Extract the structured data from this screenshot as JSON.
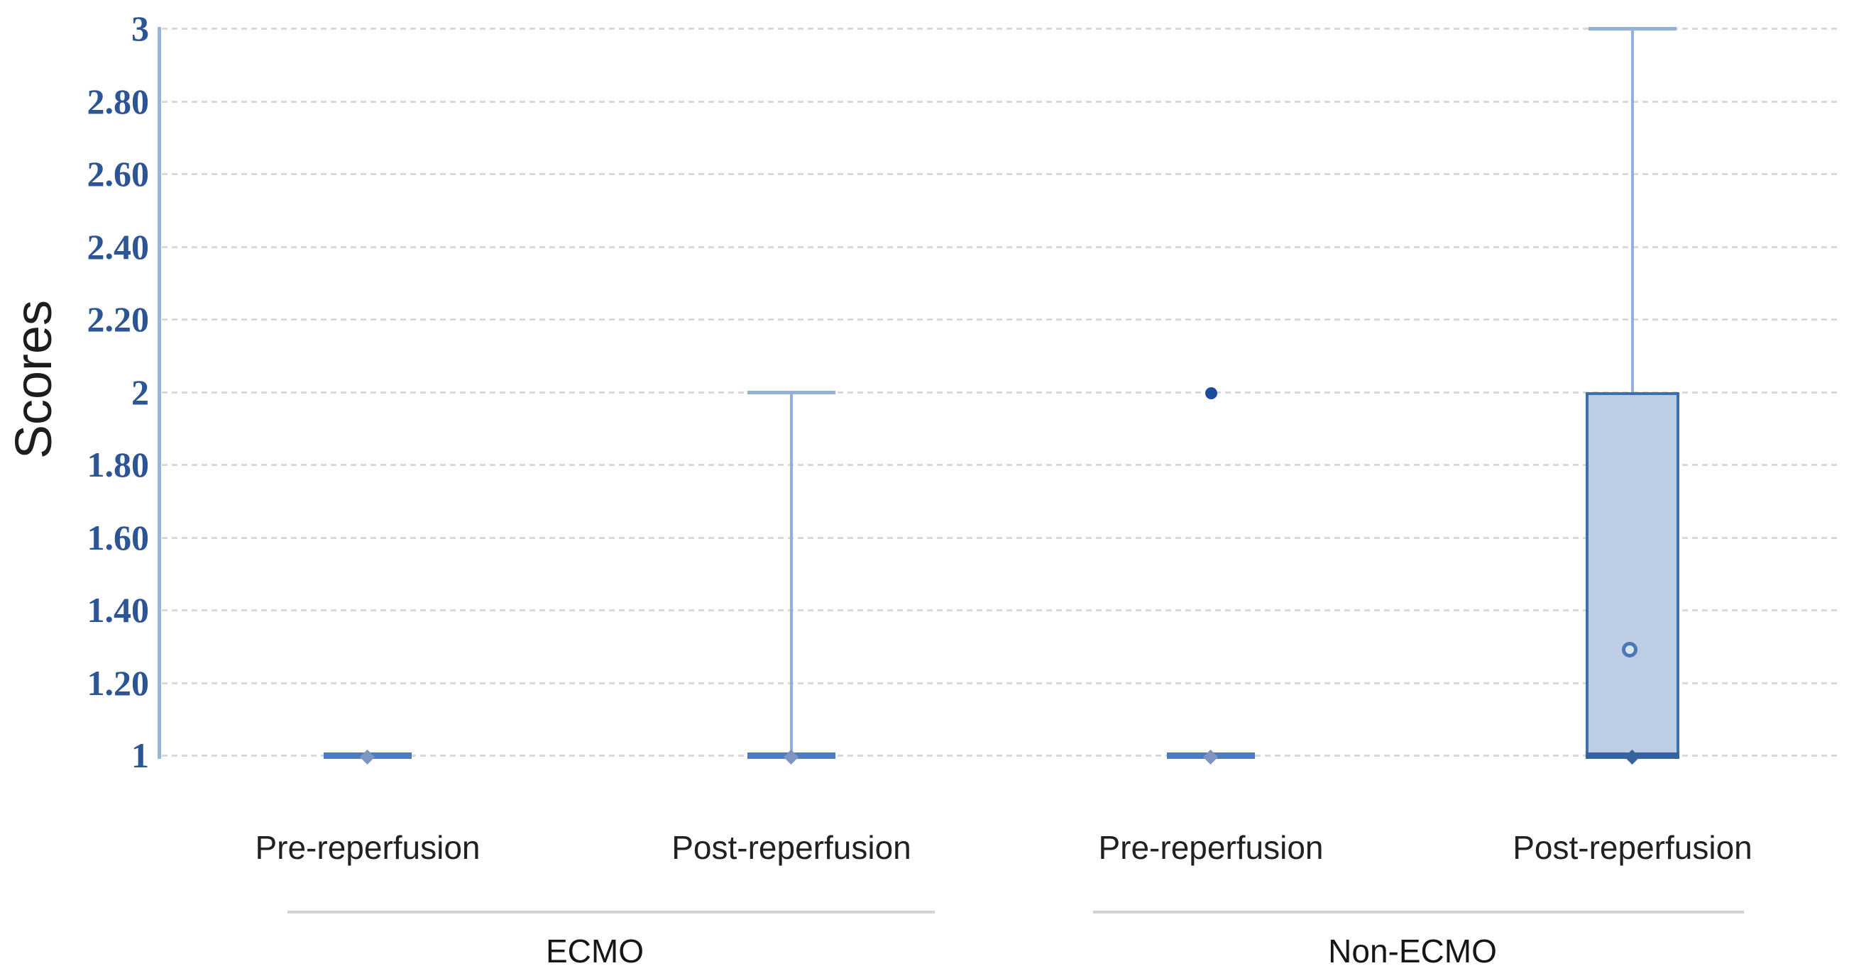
{
  "chart_data": {
    "type": "boxplot",
    "title": "",
    "ylabel": "Scores",
    "xlabel": "",
    "ylim": [
      1,
      3
    ],
    "yticks": [
      3,
      2.8,
      2.6,
      2.4,
      2.2,
      2,
      1.8,
      1.6,
      1.4,
      1.2,
      1
    ],
    "ytick_labels": [
      "3",
      "2.80",
      "2.60",
      "2.40",
      "2.20",
      "2",
      "1.80",
      "1.60",
      "1.40",
      "1.20",
      "1"
    ],
    "grid": "dotted horizontal gridlines at every y tick",
    "legend": "none",
    "categories": [
      "Pre-reperfusion",
      "Post-reperfusion",
      "Pre-reperfusion",
      "Post-reperfusion"
    ],
    "group_labels": [
      "ECMO",
      "Non-ECMO"
    ],
    "series": [
      {
        "group": "ECMO",
        "category": "Pre-reperfusion",
        "min": 1,
        "q1": 1,
        "median": 1,
        "q3": 1,
        "max": 1,
        "outliers": []
      },
      {
        "group": "ECMO",
        "category": "Post-reperfusion",
        "min": 1,
        "q1": 1,
        "median": 1,
        "q3": 1,
        "max": 2,
        "outliers": []
      },
      {
        "group": "Non-ECMO",
        "category": "Pre-reperfusion",
        "min": 1,
        "q1": 1,
        "median": 1,
        "q3": 1,
        "max": 1,
        "outliers": [
          2
        ]
      },
      {
        "group": "Non-ECMO",
        "category": "Post-reperfusion",
        "min": 1,
        "q1": 1,
        "median": 1,
        "q3": 2,
        "max": 3,
        "mean": 1.29,
        "outliers": []
      }
    ],
    "colors": {
      "tick_text": "#2d5493",
      "axis_line": "#9ab4d8",
      "gridline": "#d9d9d9",
      "whisker": "#93b0d8",
      "median": "#4c7cbd",
      "median_dark": "#35639f",
      "marker": "#7e95c4",
      "box_fill": "#bdcde3",
      "box_border": "#3f6eae",
      "mean_ring": "#4c79b5",
      "mean_fill": "#dbe5f2",
      "outlier": "#1b4c9b",
      "label_text": "#212121",
      "group_line": "#d2d2d2"
    }
  }
}
